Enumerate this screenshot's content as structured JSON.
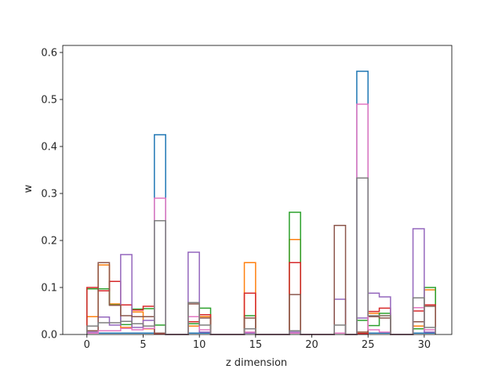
{
  "chart_data": {
    "type": "step-histogram",
    "title": "",
    "xlabel": "z dimension",
    "ylabel": "w",
    "xlim": [
      -2.15,
      32.45
    ],
    "ylim": [
      0,
      0.615
    ],
    "xticks": [
      0,
      5,
      10,
      15,
      20,
      25,
      30
    ],
    "yticks": [
      0.0,
      0.1,
      0.2,
      0.3,
      0.4,
      0.5,
      0.6
    ],
    "ytick_labels": [
      "0.0",
      "0.1",
      "0.2",
      "0.3",
      "0.4",
      "0.5",
      "0.6"
    ],
    "bin_edges": [
      0,
      1,
      2,
      3,
      4,
      5,
      6,
      7,
      8,
      9,
      10,
      11,
      12,
      13,
      14,
      15,
      16,
      17,
      18,
      19,
      20,
      21,
      22,
      23,
      24,
      25,
      26,
      27,
      28,
      29,
      30,
      31
    ],
    "legend": "none",
    "grid": false,
    "series": [
      {
        "color": "#1f77b4",
        "values": [
          0.003,
          0.003,
          0.003,
          0.003,
          0.003,
          0.003,
          0.425,
          0,
          0,
          0.003,
          0.003,
          0,
          0,
          0,
          0.003,
          0,
          0,
          0,
          0.003,
          0,
          0,
          0,
          0.003,
          0,
          0.56,
          0.003,
          0.003,
          0,
          0,
          0.003,
          0.003,
          0.003
        ]
      },
      {
        "color": "#ff7f0e",
        "values": [
          0.038,
          0.148,
          0.065,
          0.015,
          0.048,
          0.012,
          0.003,
          0,
          0,
          0.018,
          0.038,
          0,
          0,
          0,
          0.153,
          0,
          0,
          0,
          0.202,
          0,
          0,
          0,
          0.003,
          0,
          0.005,
          0.045,
          0.04,
          0,
          0,
          0.018,
          0.095,
          0.003
        ]
      },
      {
        "color": "#2ca02c",
        "values": [
          0.097,
          0.097,
          0.063,
          0.021,
          0.054,
          0.055,
          0.02,
          0,
          0,
          0.023,
          0.056,
          0,
          0,
          0,
          0.04,
          0,
          0,
          0,
          0.26,
          0,
          0,
          0,
          0.003,
          0,
          0.03,
          0.019,
          0.045,
          0,
          0,
          0.012,
          0.1,
          0.008
        ]
      },
      {
        "color": "#d62728",
        "values": [
          0.1,
          0.093,
          0.113,
          0.063,
          0.052,
          0.06,
          0.002,
          0,
          0,
          0.027,
          0.042,
          0,
          0,
          0,
          0.088,
          0,
          0,
          0,
          0.153,
          0,
          0,
          0,
          0.003,
          0,
          0.002,
          0.049,
          0.056,
          0,
          0,
          0.05,
          0.063,
          0.005
        ]
      },
      {
        "color": "#9467bd",
        "values": [
          0.005,
          0.037,
          0.02,
          0.17,
          0.015,
          0.03,
          0.003,
          0,
          0,
          0.175,
          0.005,
          0,
          0,
          0,
          0.003,
          0,
          0,
          0,
          0.005,
          0,
          0,
          0,
          0.075,
          0,
          0.035,
          0.088,
          0.08,
          0,
          0,
          0.225,
          0.005,
          0.048
        ]
      },
      {
        "color": "#8c564b",
        "values": [
          0.008,
          0.153,
          0.062,
          0.04,
          0.038,
          0.038,
          0.003,
          0,
          0,
          0.065,
          0.035,
          0,
          0,
          0,
          0.035,
          0,
          0,
          0,
          0.085,
          0,
          0,
          0,
          0.232,
          0,
          0.005,
          0.038,
          0.035,
          0,
          0,
          0.027,
          0.06,
          0.03
        ]
      },
      {
        "color": "#e377c2",
        "values": [
          0.003,
          0.008,
          0.008,
          0.013,
          0.01,
          0.013,
          0.29,
          0,
          0,
          0.038,
          0.01,
          0,
          0,
          0,
          0.005,
          0,
          0,
          0,
          0.003,
          0,
          0,
          0,
          0.003,
          0,
          0.49,
          0.01,
          0.005,
          0,
          0,
          0.057,
          0.01,
          0.003
        ]
      },
      {
        "color": "#7f7f7f",
        "values": [
          0.018,
          0.025,
          0.025,
          0.028,
          0.023,
          0.018,
          0.242,
          0,
          0,
          0.068,
          0.02,
          0,
          0,
          0,
          0.012,
          0,
          0,
          0,
          0.008,
          0,
          0,
          0,
          0.02,
          0,
          0.333,
          0.04,
          0.04,
          0,
          0,
          0.078,
          0.015,
          0.003
        ]
      }
    ]
  }
}
